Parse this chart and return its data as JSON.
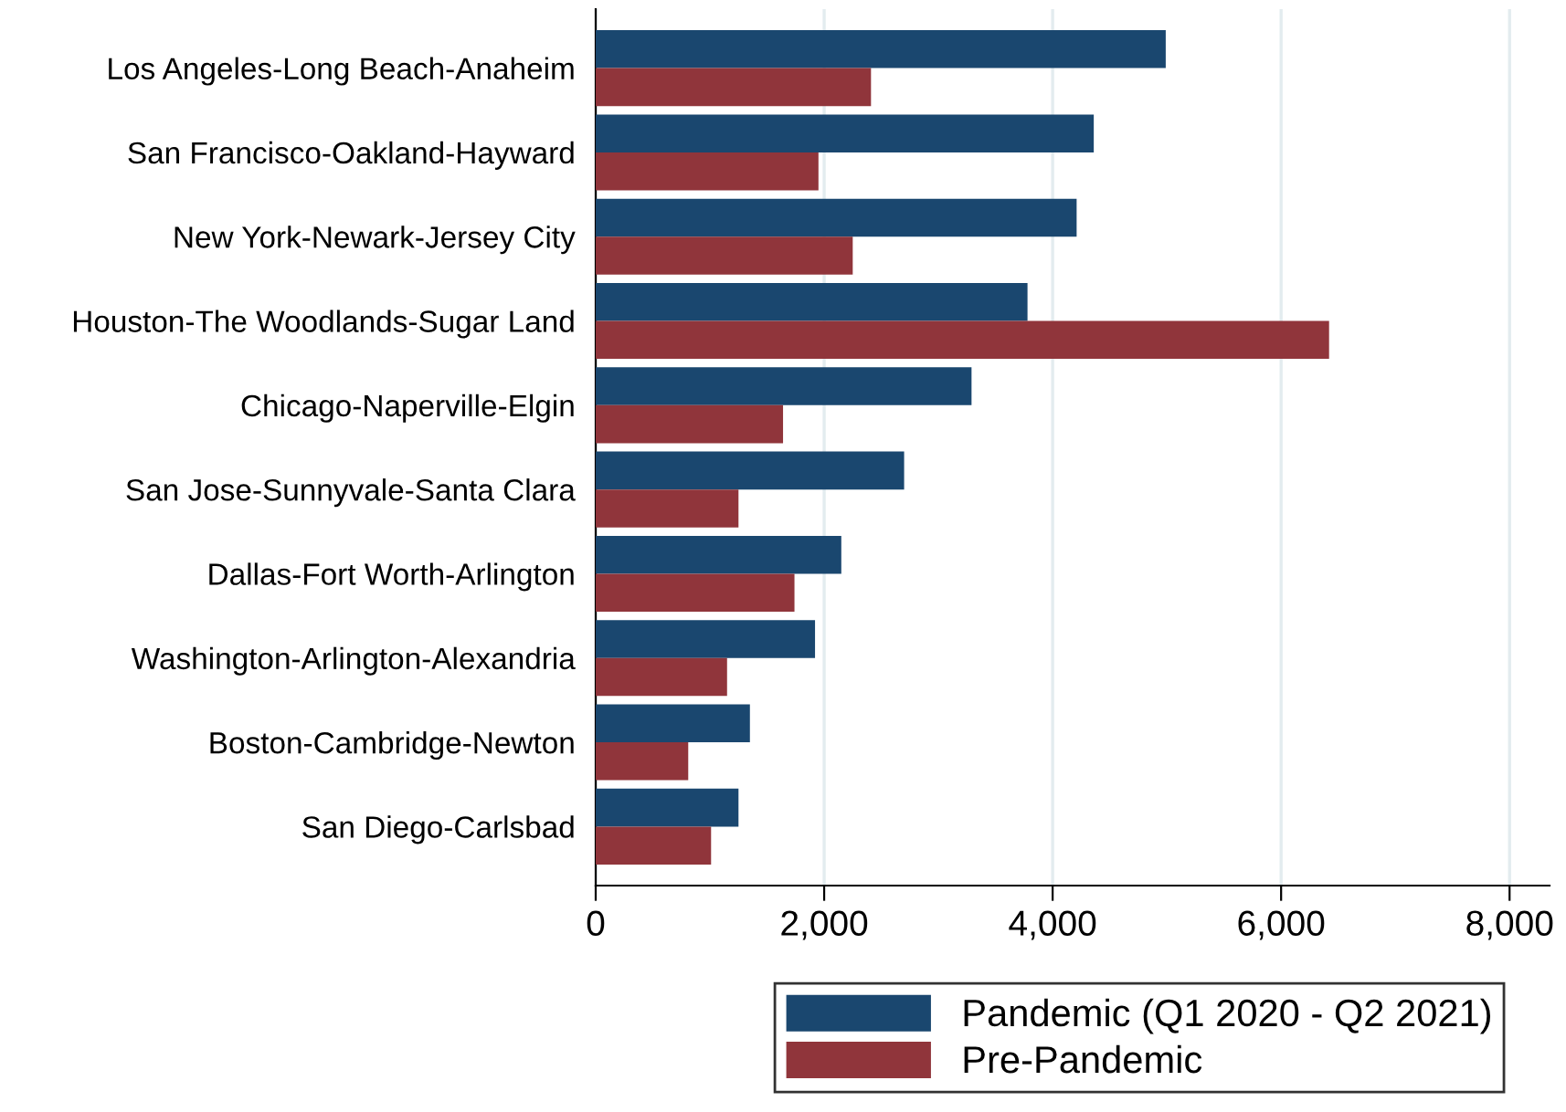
{
  "chart_data": {
    "type": "bar",
    "orientation": "horizontal",
    "categories": [
      "Los Angeles-Long Beach-Anaheim",
      "San Francisco-Oakland-Hayward",
      "New York-Newark-Jersey City",
      "Houston-The Woodlands-Sugar Land",
      "Chicago-Naperville-Elgin",
      "San Jose-Sunnyvale-Santa Clara",
      "Dallas-Fort Worth-Arlington",
      "Washington-Arlington-Alexandria",
      "Boston-Cambridge-Newton",
      "San Diego-Carlsbad"
    ],
    "series": [
      {
        "name": "Pandemic (Q1 2020 - Q2 2021)",
        "color": "#1a476f",
        "values": [
          4990,
          4360,
          4210,
          3780,
          3290,
          2700,
          2150,
          1920,
          1350,
          1250
        ]
      },
      {
        "name": "Pre-Pandemic",
        "color": "#90353b",
        "values": [
          2410,
          1950,
          2250,
          6420,
          1640,
          1250,
          1740,
          1150,
          810,
          1010
        ]
      }
    ],
    "xlim": [
      0,
      8350
    ],
    "xticks": [
      {
        "value": 0,
        "label": "0"
      },
      {
        "value": 2000,
        "label": "2,000"
      },
      {
        "value": 4000,
        "label": "4,000"
      },
      {
        "value": 6000,
        "label": "6,000"
      },
      {
        "value": 8000,
        "label": "8,000"
      }
    ],
    "grid": "x",
    "legend": "bottom"
  }
}
